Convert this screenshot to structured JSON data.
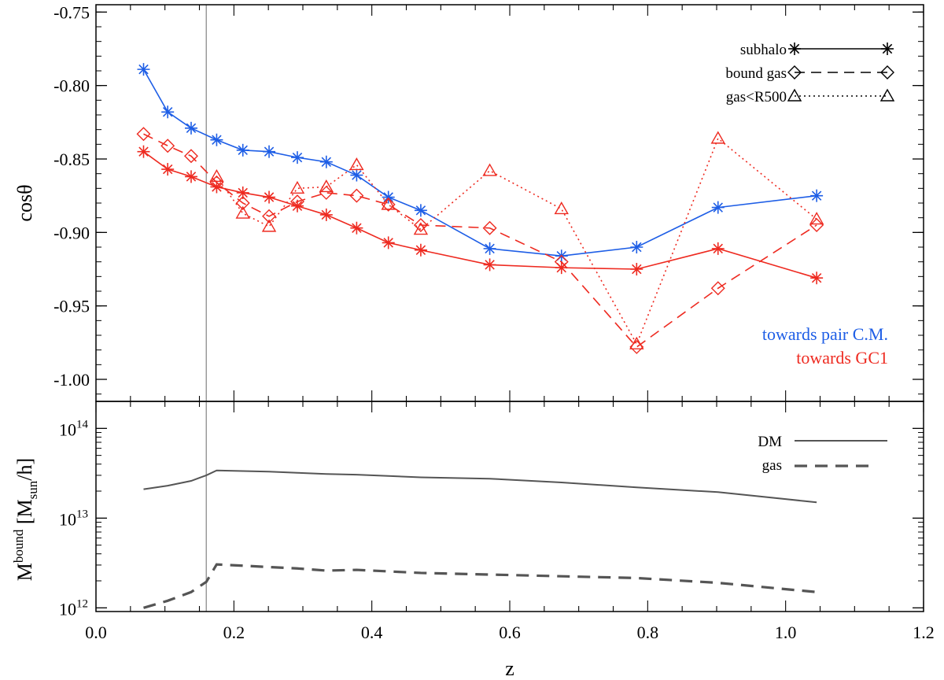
{
  "colors": {
    "red": "#ee2a20",
    "blue": "#1e5ee6",
    "black": "#000000",
    "grey": "#555555",
    "vline": "#9a9a9a"
  },
  "chart_data": [
    {
      "type": "line",
      "panel": "top",
      "ylabel": "cosθ",
      "ylim": [
        -1.015,
        -0.745
      ],
      "yticks": [
        -0.75,
        -0.8,
        -0.85,
        -0.9,
        -0.95,
        -1.0
      ],
      "ytick_labels": [
        "-0.75",
        "-0.80",
        "-0.85",
        "-0.90",
        "-0.95",
        "-1.00"
      ],
      "xlim": [
        0.0,
        1.2
      ],
      "vline_x": 0.16,
      "series": [
        {
          "name": "subhalo towards pair C.M.",
          "color": "blue",
          "style": "solid",
          "marker": "asterisk",
          "x": [
            0.069,
            0.104,
            0.138,
            0.175,
            0.213,
            0.251,
            0.292,
            0.334,
            0.378,
            0.424,
            0.471,
            0.571,
            0.675,
            0.784,
            0.902,
            1.045
          ],
          "y": [
            -0.789,
            -0.818,
            -0.829,
            -0.837,
            -0.844,
            -0.845,
            -0.849,
            -0.852,
            -0.861,
            -0.876,
            -0.885,
            -0.911,
            -0.916,
            -0.91,
            -0.883,
            -0.875
          ]
        },
        {
          "name": "subhalo towards GC1",
          "color": "red",
          "style": "solid",
          "marker": "asterisk",
          "x": [
            0.069,
            0.104,
            0.138,
            0.175,
            0.213,
            0.251,
            0.292,
            0.334,
            0.378,
            0.424,
            0.471,
            0.571,
            0.675,
            0.784,
            0.902,
            1.045
          ],
          "y": [
            -0.845,
            -0.857,
            -0.862,
            -0.869,
            -0.873,
            -0.876,
            -0.882,
            -0.888,
            -0.897,
            -0.907,
            -0.912,
            -0.922,
            -0.924,
            -0.925,
            -0.911,
            -0.931
          ]
        },
        {
          "name": "bound gas towards GC1",
          "color": "red",
          "style": "dashed",
          "marker": "diamond",
          "x": [
            0.069,
            0.104,
            0.138,
            0.175,
            0.213,
            0.251,
            0.292,
            0.334,
            0.378,
            0.424,
            0.471,
            0.571,
            0.675,
            0.784,
            0.902,
            1.045
          ],
          "y": [
            -0.833,
            -0.841,
            -0.848,
            -0.866,
            -0.88,
            -0.889,
            -0.879,
            -0.873,
            -0.875,
            -0.881,
            -0.895,
            -0.897,
            -0.92,
            -0.978,
            -0.938,
            -0.895
          ]
        },
        {
          "name": "gas<R500 towards GC1",
          "color": "red",
          "style": "dotted",
          "marker": "triangle",
          "x": [
            0.175,
            0.213,
            0.251,
            0.292,
            0.334,
            0.378,
            0.424,
            0.471,
            0.571,
            0.675,
            0.784,
            0.902,
            1.045
          ],
          "y": [
            -0.862,
            -0.887,
            -0.896,
            -0.87,
            -0.869,
            -0.854,
            -0.881,
            -0.898,
            -0.858,
            -0.884,
            -0.976,
            -0.836,
            -0.891
          ]
        }
      ],
      "legend": [
        {
          "label": "subhalo",
          "style": "solid",
          "marker": "asterisk"
        },
        {
          "label": "bound gas",
          "style": "dashed",
          "marker": "diamond"
        },
        {
          "label": "gas<R500",
          "style": "dotted",
          "marker": "triangle"
        }
      ],
      "legend_position": "top-right",
      "annotations": [
        {
          "text": "towards pair C.M.",
          "color": "blue"
        },
        {
          "text": "towards GC1",
          "color": "red"
        }
      ]
    },
    {
      "type": "line",
      "panel": "bottom",
      "yscale": "log",
      "ylabel": "M^bound [M_sun/h]",
      "ylim": [
        910000000000.0,
        200000000000000.0
      ],
      "yticks": [
        1000000000000.0,
        10000000000000.0,
        100000000000000.0
      ],
      "ytick_base": "10",
      "ytick_exponents": [
        "12",
        "13",
        "14"
      ],
      "xlabel": "z",
      "xlim": [
        0.0,
        1.2
      ],
      "xticks": [
        0.0,
        0.2,
        0.4,
        0.6,
        0.8,
        1.0,
        1.2
      ],
      "xtick_labels": [
        "0.0",
        "0.2",
        "0.4",
        "0.6",
        "0.8",
        "1.0",
        "1.2"
      ],
      "vline_x": 0.16,
      "series": [
        {
          "name": "DM",
          "color": "grey",
          "style": "solid",
          "x": [
            0.069,
            0.104,
            0.138,
            0.16,
            0.175,
            0.213,
            0.251,
            0.292,
            0.334,
            0.378,
            0.424,
            0.471,
            0.571,
            0.675,
            0.784,
            0.902,
            1.045
          ],
          "y": [
            21000000000000.0,
            23000000000000.0,
            26000000000000.0,
            30000000000000.0,
            34000000000000.0,
            33500000000000.0,
            33000000000000.0,
            32000000000000.0,
            31000000000000.0,
            30500000000000.0,
            29500000000000.0,
            28500000000000.0,
            27500000000000.0,
            25000000000000.0,
            22000000000000.0,
            19500000000000.0,
            15000000000000.0
          ]
        },
        {
          "name": "gas",
          "color": "grey",
          "style": "dashed",
          "x": [
            0.069,
            0.104,
            0.138,
            0.16,
            0.175,
            0.213,
            0.251,
            0.292,
            0.334,
            0.378,
            0.424,
            0.471,
            0.571,
            0.675,
            0.784,
            0.902,
            1.045
          ],
          "y": [
            1000000000000.0,
            1200000000000.0,
            1500000000000.0,
            1950000000000.0,
            3050000000000.0,
            2950000000000.0,
            2850000000000.0,
            2750000000000.0,
            2600000000000.0,
            2650000000000.0,
            2550000000000.0,
            2450000000000.0,
            2350000000000.0,
            2250000000000.0,
            2150000000000.0,
            1900000000000.0,
            1500000000000.0
          ]
        }
      ],
      "legend": [
        {
          "label": "DM",
          "style": "solid"
        },
        {
          "label": "gas",
          "style": "dashed"
        }
      ],
      "legend_position": "top-right"
    }
  ]
}
